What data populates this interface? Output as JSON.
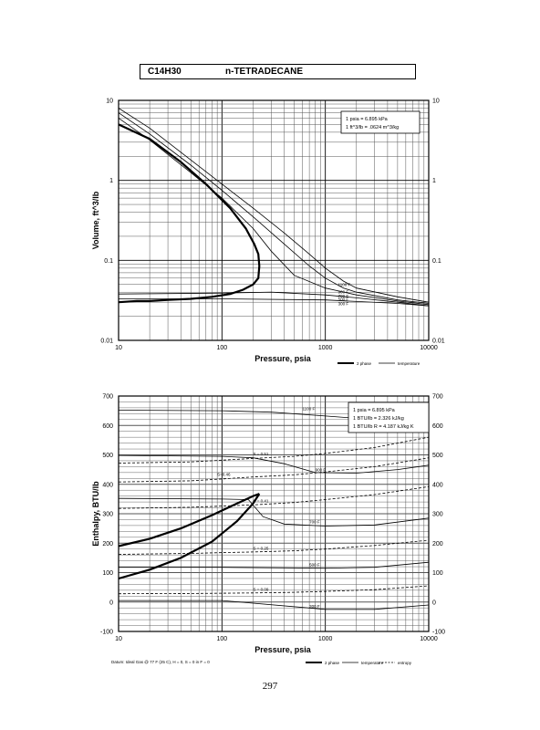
{
  "header": {
    "formula": "C14H30",
    "name": "n-TETRADECANE"
  },
  "page_number": "297",
  "chart_data": [
    {
      "type": "line",
      "xlabel": "Pressure,  psia",
      "ylabel": "Volume, ft^3/lb",
      "x_scale": "log",
      "y_scale": "log",
      "xlim": [
        10,
        10000
      ],
      "ylim": [
        0.01,
        10
      ],
      "x_ticks": [
        "10",
        "100",
        "1000",
        "10000"
      ],
      "y_ticks": [
        "0.01",
        "0.1",
        "1",
        "10"
      ],
      "grid": true,
      "conversion_note": [
        "1 psia = 6.895 kPa",
        "1 ft^3/lb = .0624 m^3/kg"
      ],
      "legend": [
        {
          "label": "2 phase",
          "style": "thick"
        },
        {
          "label": "temperature",
          "style": "thin"
        }
      ],
      "series": [
        {
          "name": "2 phase",
          "style": "thick",
          "x": [
            10,
            15,
            20,
            30,
            50,
            80,
            120,
            160,
            200,
            225,
            230,
            225,
            205,
            170,
            120,
            70,
            40,
            20,
            10
          ],
          "y": [
            0.03,
            0.031,
            0.031,
            0.032,
            0.033,
            0.035,
            0.038,
            0.043,
            0.05,
            0.06,
            0.085,
            0.12,
            0.16,
            0.25,
            0.45,
            0.9,
            1.7,
            3.3,
            5
          ]
        },
        {
          "name": "1100 F",
          "style": "thin",
          "x": [
            10,
            20,
            50,
            100,
            200,
            400,
            700,
            1000,
            1500,
            2000,
            5000,
            10000
          ],
          "y": [
            8,
            4.5,
            1.8,
            0.9,
            0.45,
            0.22,
            0.12,
            0.08,
            0.055,
            0.045,
            0.035,
            0.03
          ]
        },
        {
          "name": "900 F",
          "style": "thin",
          "x": [
            10,
            20,
            50,
            100,
            200,
            400,
            700,
            1000,
            1500,
            2000,
            5000,
            10000
          ],
          "y": [
            7,
            3.8,
            1.55,
            0.75,
            0.35,
            0.16,
            0.085,
            0.06,
            0.045,
            0.04,
            0.032,
            0.029
          ]
        },
        {
          "name": "700 F",
          "style": "thin",
          "x": [
            10,
            20,
            50,
            100,
            200,
            300,
            500,
            1000,
            2000,
            5000,
            10000
          ],
          "y": [
            6,
            3.2,
            1.25,
            0.6,
            0.25,
            0.13,
            0.065,
            0.045,
            0.037,
            0.031,
            0.028
          ]
        },
        {
          "name": "500 F",
          "style": "thin",
          "x": [
            10,
            100,
            300,
            1000,
            2000,
            5000,
            10000
          ],
          "y": [
            0.038,
            0.039,
            0.04,
            0.037,
            0.034,
            0.03,
            0.027
          ]
        },
        {
          "name": "300 F",
          "style": "thin",
          "x": [
            10,
            100,
            1000,
            5000,
            10000
          ],
          "y": [
            0.033,
            0.033,
            0.032,
            0.029,
            0.027
          ]
        }
      ]
    },
    {
      "type": "line",
      "xlabel": "Pressure,  psia",
      "ylabel": "Enthalpy, BTU/lb",
      "x_scale": "log",
      "xlim": [
        10,
        10000
      ],
      "ylim": [
        -100,
        700
      ],
      "x_ticks": [
        "10",
        "100",
        "1000",
        "10000"
      ],
      "y_ticks": [
        "-100",
        "0",
        "100",
        "200",
        "300",
        "400",
        "500",
        "600",
        "700"
      ],
      "grid": true,
      "conversion_note": [
        "1 psia = 6.895 kPa",
        "1 BTU/lb = 2.326 kJ/kg",
        "1 BTU/lb R = 4.187 kJ/kg K"
      ],
      "footnote": "Datum: Ideal Gas @ 77 F (25 C),  H = 0,  S = 0 in F = 0",
      "legend": [
        {
          "label": "2 phase",
          "style": "thick"
        },
        {
          "label": "temperature",
          "style": "thin"
        },
        {
          "label": "entropy",
          "style": "dashed"
        }
      ],
      "series": [
        {
          "name": "2 phase upper",
          "style": "thick",
          "x": [
            10,
            20,
            40,
            80,
            140,
            200,
            230
          ],
          "y": [
            190,
            215,
            250,
            295,
            335,
            360,
            368
          ]
        },
        {
          "name": "2 phase lower",
          "style": "thick",
          "x": [
            10,
            20,
            40,
            80,
            140,
            200,
            230
          ],
          "y": [
            80,
            110,
            150,
            205,
            275,
            335,
            368
          ]
        },
        {
          "name": "1100 F",
          "style": "thin",
          "x": [
            10,
            100,
            300,
            1000,
            3000,
            10000
          ],
          "y": [
            652,
            650,
            645,
            632,
            620,
            610
          ]
        },
        {
          "name": "900 F",
          "style": "thin",
          "x": [
            10,
            100,
            200,
            400,
            800,
            2000,
            5000,
            10000
          ],
          "y": [
            498,
            495,
            490,
            470,
            440,
            438,
            450,
            465
          ]
        },
        {
          "name": "700 F",
          "style": "thin",
          "x": [
            10,
            100,
            180,
            250,
            400,
            1000,
            3000,
            10000
          ],
          "y": [
            352,
            350,
            348,
            290,
            265,
            258,
            262,
            285
          ]
        },
        {
          "name": "500 F",
          "style": "thin",
          "x": [
            10,
            100,
            1000,
            3000,
            10000
          ],
          "y": [
            118,
            118,
            115,
            118,
            135
          ]
        },
        {
          "name": "300 F",
          "style": "thin",
          "x": [
            10,
            100,
            1000,
            3000,
            10000
          ],
          "y": [
            5,
            5,
            -25,
            -25,
            -10
          ]
        },
        {
          "name": "S=0.51",
          "style": "dashed",
          "x": [
            10,
            50,
            100,
            200,
            500,
            1000,
            3000,
            10000
          ],
          "y": [
            472,
            476,
            482,
            488,
            495,
            505,
            525,
            560
          ]
        },
        {
          "name": "S=0.46",
          "style": "dashed",
          "x": [
            10,
            50,
            100,
            200,
            500,
            1000,
            3000,
            10000
          ],
          "y": [
            408,
            412,
            418,
            425,
            432,
            442,
            460,
            490
          ]
        },
        {
          "name": "S=0.41",
          "style": "dashed",
          "x": [
            10,
            50,
            100,
            200,
            500,
            1000,
            3000,
            10000
          ],
          "y": [
            318,
            322,
            326,
            330,
            338,
            348,
            365,
            392
          ]
        },
        {
          "name": "S=0.25",
          "style": "dashed",
          "x": [
            10,
            50,
            100,
            200,
            500,
            1000,
            3000,
            10000
          ],
          "y": [
            162,
            165,
            168,
            170,
            174,
            180,
            192,
            210
          ]
        },
        {
          "name": "S=0.09",
          "style": "dashed",
          "x": [
            10,
            50,
            100,
            200,
            500,
            1000,
            3000,
            10000
          ],
          "y": [
            28,
            29,
            30,
            31,
            33,
            36,
            42,
            55
          ]
        }
      ],
      "annotations": [
        "1100 F",
        "900 F",
        "700 F",
        "500 F",
        "300 F",
        "S = 0.51",
        "S=0.46",
        "S = 0.41",
        "S = 0.25",
        "S = 0.09"
      ]
    }
  ]
}
